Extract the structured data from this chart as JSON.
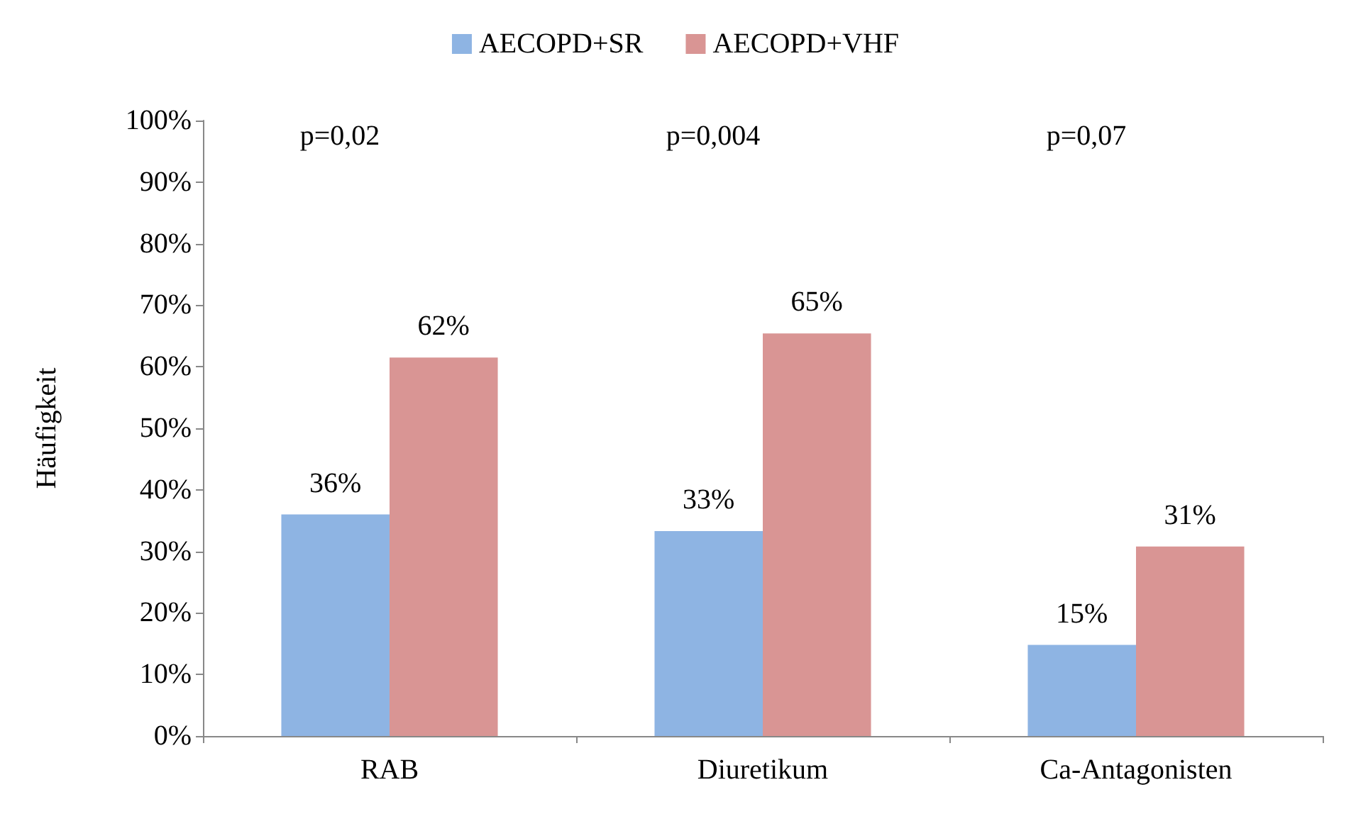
{
  "chart_data": {
    "type": "bar",
    "ylabel": "Häufigkeit",
    "categories": [
      "RAB",
      "Diuretikum",
      "Ca-Antagonisten"
    ],
    "series": [
      {
        "name": "AECOPD+SR",
        "color": "#8eb4e3",
        "values": [
          36,
          33.3,
          14.8
        ],
        "value_labels": [
          "36%",
          "33%",
          "15%"
        ]
      },
      {
        "name": "AECOPD+VHF",
        "color": "#d99594",
        "values": [
          61.5,
          65.4,
          30.8
        ],
        "value_labels": [
          "62%",
          "65%",
          "31%"
        ]
      }
    ],
    "ylim": [
      0,
      100
    ],
    "yticks": [
      {
        "value": 0,
        "label": "0%"
      },
      {
        "value": 10,
        "label": "10%"
      },
      {
        "value": 20,
        "label": "20%"
      },
      {
        "value": 30,
        "label": "30%"
      },
      {
        "value": 40,
        "label": "40%"
      },
      {
        "value": 50,
        "label": "50%"
      },
      {
        "value": 60,
        "label": "60%"
      },
      {
        "value": 70,
        "label": "70%"
      },
      {
        "value": 80,
        "label": "80%"
      },
      {
        "value": 90,
        "label": "90%"
      },
      {
        "value": 100,
        "label": "100%"
      }
    ],
    "annotations": [
      "p=0,02",
      "p=0,004",
      "p=0,07"
    ],
    "grid": false,
    "legend": "top"
  }
}
